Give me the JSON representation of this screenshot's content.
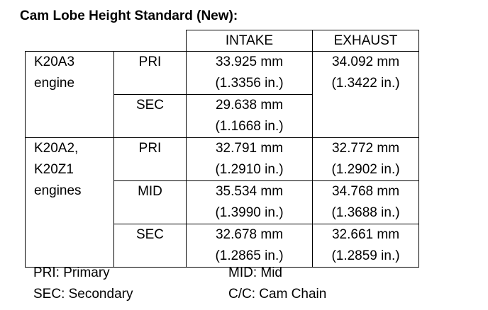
{
  "header": {
    "title": "Cam Lobe Height Standard (New):"
  },
  "table": {
    "columns": [
      "INTAKE",
      "EXHAUST"
    ],
    "groups": [
      {
        "engine": [
          "K20A3",
          "engine"
        ],
        "rows": [
          {
            "type": "PRI",
            "intake": [
              "33.925 mm",
              "(1.3356 in.)"
            ],
            "exhaust": [
              "34.092 mm",
              "(1.3422 in.)"
            ]
          },
          {
            "type": "SEC",
            "intake": [
              "29.638 mm",
              "(1.1668 in.)"
            ]
          }
        ]
      },
      {
        "engine": [
          "K20A2,",
          "K20Z1",
          "engines"
        ],
        "rows": [
          {
            "type": "PRI",
            "intake": [
              "32.791 mm",
              "(1.2910 in.)"
            ],
            "exhaust": [
              "32.772 mm",
              "(1.2902 in.)"
            ]
          },
          {
            "type": "MID",
            "intake": [
              "35.534 mm",
              "(1.3990 in.)"
            ],
            "exhaust": [
              "34.768 mm",
              "(1.3688 in.)"
            ]
          },
          {
            "type": "SEC",
            "intake": [
              "32.678 mm",
              "(1.2865 in.)"
            ],
            "exhaust": [
              "32.661 mm",
              "(1.2859 in.)"
            ]
          }
        ]
      }
    ]
  },
  "legend": [
    "PRI: Primary",
    "MID: Mid",
    "SEC: Secondary",
    "C/C: Cam Chain"
  ]
}
